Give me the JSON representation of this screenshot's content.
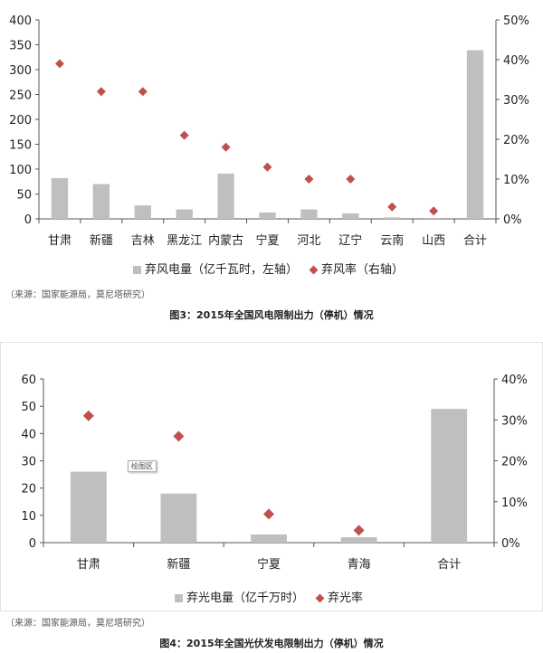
{
  "chart_data": [
    {
      "type": "bar",
      "categories": [
        "甘肃",
        "新疆",
        "吉林",
        "黑龙江",
        "内蒙古",
        "宁夏",
        "河北",
        "辽宁",
        "云南",
        "山西",
        "合计"
      ],
      "series": [
        {
          "name": "弃风电量（亿千瓦时，左轴）",
          "type": "bar",
          "axis": "left",
          "values": [
            82,
            70,
            27,
            19,
            91,
            13,
            19,
            11,
            3,
            2,
            339
          ]
        },
        {
          "name": "弃风率（右轴）",
          "type": "scatter",
          "axis": "right",
          "values": [
            39,
            32,
            32,
            21,
            18,
            13,
            10,
            10,
            3,
            2,
            null
          ]
        }
      ],
      "ylim": [
        0,
        400
      ],
      "yticks": [
        "0",
        "50",
        "100",
        "150",
        "200",
        "250",
        "300",
        "350",
        "400"
      ],
      "y2lim": [
        0,
        50
      ],
      "y2ticks": [
        "0%",
        "10%",
        "20%",
        "30%",
        "40%",
        "50%"
      ],
      "legend_position": "bottom",
      "grid": false
    },
    {
      "type": "bar",
      "categories": [
        "甘肃",
        "新疆",
        "宁夏",
        "青海",
        "合计"
      ],
      "series": [
        {
          "name": "弃光电量（亿千万时）",
          "type": "bar",
          "axis": "left",
          "values": [
            26,
            18,
            3,
            2,
            49
          ]
        },
        {
          "name": "弃光率",
          "type": "scatter",
          "axis": "right",
          "values": [
            31,
            26,
            7,
            3,
            null
          ]
        }
      ],
      "ylim": [
        0,
        60
      ],
      "yticks": [
        "0",
        "10",
        "20",
        "30",
        "40",
        "50",
        "60"
      ],
      "y2lim": [
        0,
        40
      ],
      "y2ticks": [
        "0%",
        "10%",
        "20%",
        "30%",
        "40%"
      ],
      "legend_position": "bottom",
      "grid": false
    }
  ],
  "figures": {
    "fig3": {
      "source": "（来源：国家能源局，莫尼塔研究）",
      "caption": "图3：2015年全国风电限制出力（停机）情况",
      "legend_bar": "弃风电量（亿千瓦时，左轴）",
      "legend_marker": "弃风率（右轴）"
    },
    "fig4": {
      "source": "（来源：国家能源局，莫尼塔研究）",
      "caption": "图4：2015年全国光伏发电限制出力（停机）情况",
      "legend_bar": "弃光电量（亿千万时）",
      "legend_marker": "弃光率",
      "plot_area_tag": "绘图区"
    }
  },
  "colors": {
    "bar": "#bfbfbf",
    "marker": "#c0504d",
    "axis": "#555555"
  }
}
